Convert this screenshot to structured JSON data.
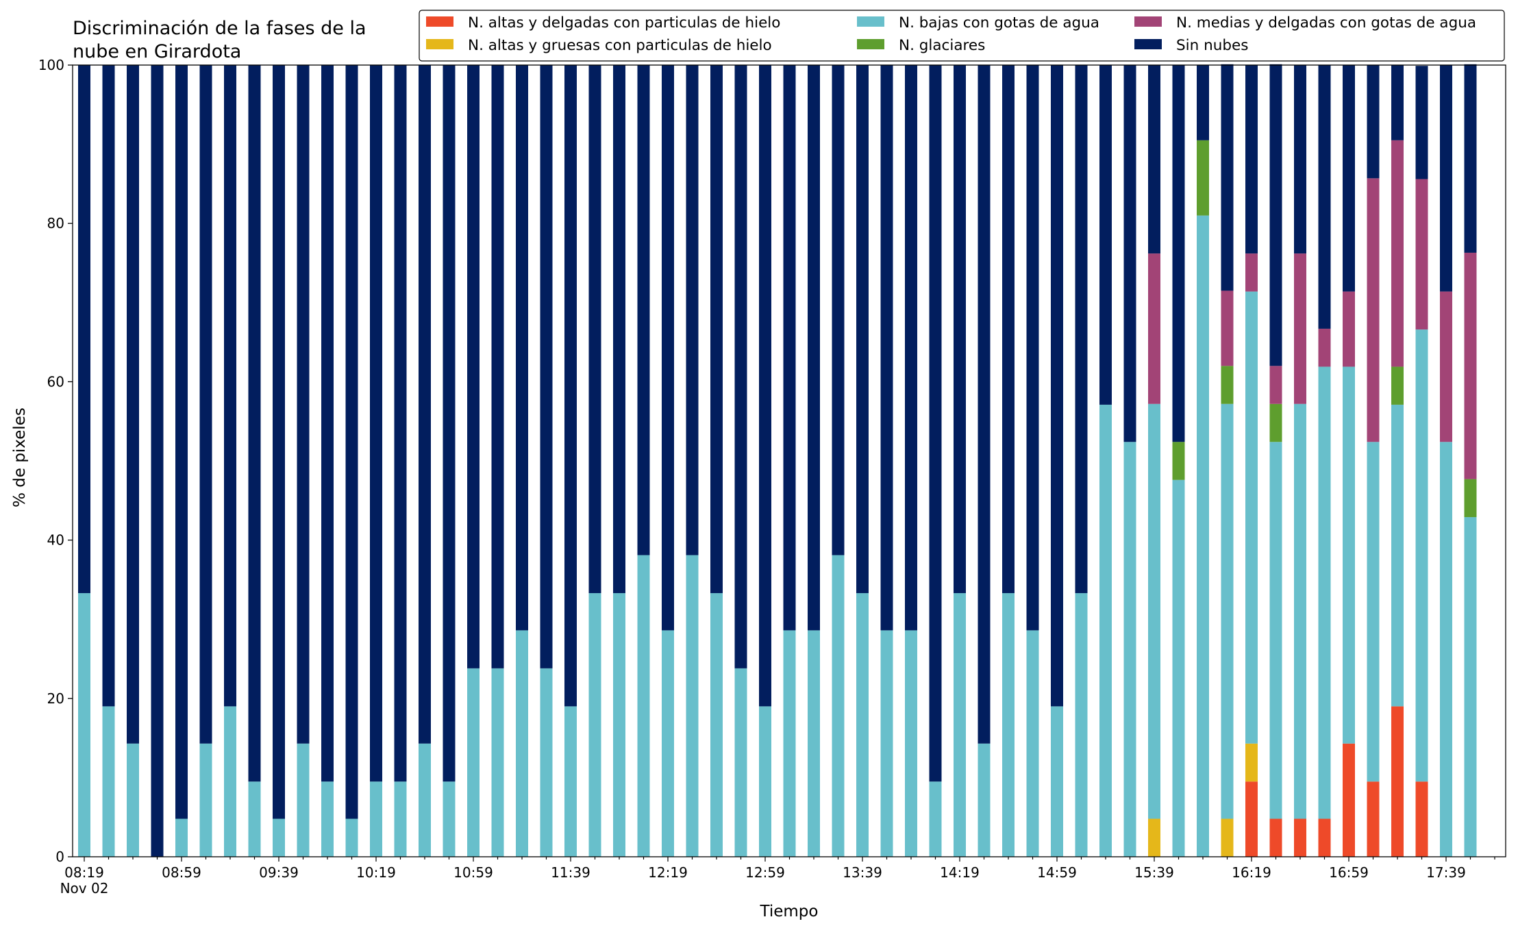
{
  "chart_data": {
    "type": "bar",
    "stacked": true,
    "title": [
      "Discriminación de la fases de la",
      "nube en Girardota"
    ],
    "xlabel": "Tiempo",
    "ylabel": "% de pixeles",
    "ylim": [
      0,
      100
    ],
    "yticks": [
      0,
      20,
      40,
      60,
      80,
      100
    ],
    "xtick_labels": [
      "08:19",
      "08:59",
      "09:39",
      "10:19",
      "10:59",
      "11:39",
      "12:19",
      "12:59",
      "13:39",
      "14:19",
      "14:59",
      "15:39",
      "16:19",
      "16:59",
      "17:39"
    ],
    "xtick_sublabel": "Nov 02",
    "categories": [
      "08:19",
      "08:29",
      "08:39",
      "08:49",
      "08:59",
      "09:09",
      "09:19",
      "09:29",
      "09:39",
      "09:49",
      "09:59",
      "10:09",
      "10:19",
      "10:29",
      "10:39",
      "10:49",
      "10:59",
      "11:09",
      "11:19",
      "11:29",
      "11:39",
      "11:49",
      "11:59",
      "12:09",
      "12:19",
      "12:29",
      "12:39",
      "12:49",
      "12:59",
      "13:09",
      "13:19",
      "13:29",
      "13:39",
      "13:49",
      "13:59",
      "14:09",
      "14:19",
      "14:29",
      "14:39",
      "14:49",
      "14:59",
      "15:09",
      "15:19",
      "15:29",
      "15:39",
      "15:49",
      "15:59",
      "16:09",
      "16:19",
      "16:29",
      "16:39",
      "16:49",
      "16:59",
      "17:09",
      "17:19",
      "17:29",
      "17:39",
      "17:49"
    ],
    "legend_position": "top",
    "series": [
      {
        "name": "N. altas y delgadas con particulas de hielo",
        "color": "#ee4a29",
        "values": [
          0,
          0,
          0,
          0,
          0,
          0,
          0,
          0,
          0,
          0,
          0,
          0,
          0,
          0,
          0,
          0,
          0,
          0,
          0,
          0,
          0,
          0,
          0,
          0,
          0,
          0,
          0,
          0,
          0,
          0,
          0,
          0,
          0,
          0,
          0,
          0,
          0,
          0,
          0,
          0,
          0,
          0,
          0,
          0,
          0,
          0,
          0,
          0,
          9.5,
          4.8,
          4.8,
          4.8,
          14.3,
          9.5,
          19.0,
          9.5,
          0,
          0
        ]
      },
      {
        "name": "N. altas y gruesas con particulas de hielo",
        "color": "#e5b71a",
        "values": [
          0,
          0,
          0,
          0,
          0,
          0,
          0,
          0,
          0,
          0,
          0,
          0,
          0,
          0,
          0,
          0,
          0,
          0,
          0,
          0,
          0,
          0,
          0,
          0,
          0,
          0,
          0,
          0,
          0,
          0,
          0,
          0,
          0,
          0,
          0,
          0,
          0,
          0,
          0,
          0,
          0,
          0,
          0,
          0,
          4.8,
          0,
          0,
          4.8,
          4.8,
          0,
          0,
          0,
          0,
          0,
          0,
          0,
          0,
          0
        ]
      },
      {
        "name": "N. bajas con gotas de agua",
        "color": "#68bfcb",
        "values": [
          33.3,
          19.0,
          14.3,
          0,
          4.8,
          14.3,
          19.0,
          9.5,
          4.8,
          14.3,
          9.5,
          4.8,
          9.5,
          9.5,
          14.3,
          9.5,
          23.8,
          23.8,
          28.6,
          23.8,
          19.0,
          33.3,
          33.3,
          38.1,
          28.6,
          38.1,
          33.3,
          23.8,
          19.0,
          28.6,
          28.6,
          38.1,
          33.3,
          28.6,
          28.6,
          9.5,
          33.3,
          14.3,
          33.3,
          28.6,
          19.0,
          33.3,
          57.1,
          52.4,
          52.4,
          47.6,
          81.0,
          52.4,
          57.1,
          47.6,
          52.4,
          57.1,
          47.6,
          42.9,
          38.1,
          57.1,
          52.4,
          42.9
        ]
      },
      {
        "name": "N. glaciares",
        "color": "#5e9e2e",
        "values": [
          0,
          0,
          0,
          0,
          0,
          0,
          0,
          0,
          0,
          0,
          0,
          0,
          0,
          0,
          0,
          0,
          0,
          0,
          0,
          0,
          0,
          0,
          0,
          0,
          0,
          0,
          0,
          0,
          0,
          0,
          0,
          0,
          0,
          0,
          0,
          0,
          0,
          0,
          0,
          0,
          0,
          0,
          0,
          0,
          0,
          4.8,
          9.5,
          4.8,
          0,
          4.8,
          0,
          0,
          0,
          0,
          4.8,
          0,
          0,
          4.8
        ]
      },
      {
        "name": "N. medias y delgadas con gotas de agua",
        "color": "#a24476",
        "values": [
          0,
          0,
          0,
          0,
          0,
          0,
          0,
          0,
          0,
          0,
          0,
          0,
          0,
          0,
          0,
          0,
          0,
          0,
          0,
          0,
          0,
          0,
          0,
          0,
          0,
          0,
          0,
          0,
          0,
          0,
          0,
          0,
          0,
          0,
          0,
          0,
          0,
          0,
          0,
          0,
          0,
          0,
          0,
          0,
          19.0,
          0,
          0,
          9.5,
          4.8,
          4.8,
          19.0,
          4.8,
          9.5,
          33.3,
          28.6,
          19.0,
          19.0,
          28.6
        ]
      },
      {
        "name": "Sin nubes",
        "color": "#021e5e",
        "values": [
          66.7,
          81.0,
          85.7,
          100,
          95.2,
          85.7,
          81.0,
          90.5,
          95.2,
          85.7,
          90.5,
          95.2,
          90.5,
          90.5,
          85.7,
          90.5,
          76.2,
          76.2,
          71.4,
          76.2,
          81.0,
          66.7,
          66.7,
          61.9,
          71.4,
          61.9,
          66.7,
          76.2,
          81.0,
          71.4,
          71.4,
          61.9,
          66.7,
          71.4,
          71.4,
          90.5,
          66.7,
          85.7,
          66.7,
          71.4,
          81.0,
          66.7,
          42.9,
          47.6,
          23.8,
          47.6,
          9.5,
          28.6,
          23.8,
          38.1,
          23.8,
          33.3,
          28.6,
          14.3,
          9.5,
          14.3,
          28.6,
          23.8
        ]
      }
    ]
  }
}
